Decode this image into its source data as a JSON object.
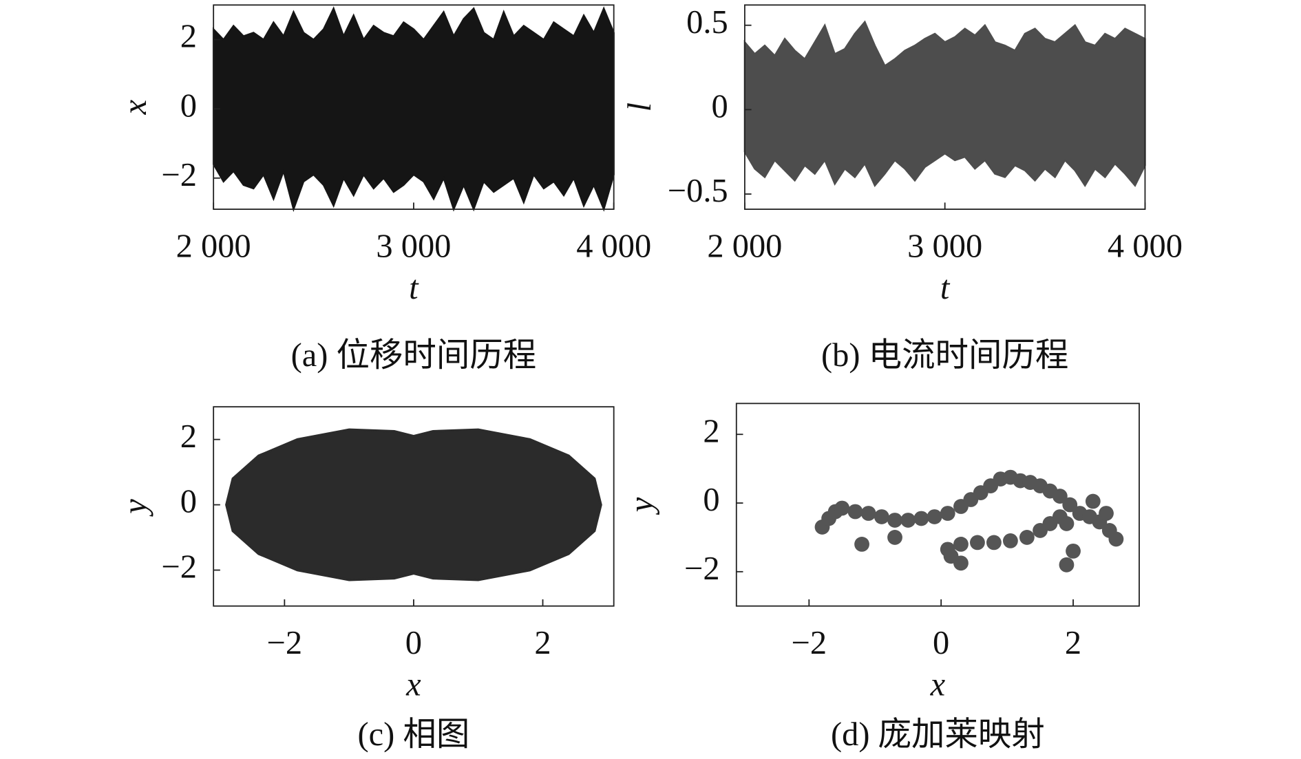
{
  "chart_data": [
    {
      "type": "area",
      "caption": "(a) 位移时间历程",
      "xlabel": "t",
      "ylabel": "x",
      "color": "#151515",
      "xlim": [
        2000,
        4000
      ],
      "ylim": [
        -2.9,
        3.0
      ],
      "xticks": [
        {
          "value": 2000,
          "label": "2 000"
        },
        {
          "value": 3000,
          "label": "3 000"
        },
        {
          "value": 4000,
          "label": "4 000"
        }
      ],
      "yticks": [
        {
          "value": -2,
          "label": "−2"
        },
        0,
        2
      ],
      "x": [
        2000,
        2050,
        2100,
        2150,
        2200,
        2250,
        2300,
        2350,
        2400,
        2450,
        2500,
        2550,
        2600,
        2650,
        2700,
        2750,
        2800,
        2850,
        2900,
        2950,
        3000,
        3050,
        3100,
        3150,
        3200,
        3250,
        3300,
        3350,
        3400,
        3450,
        3500,
        3550,
        3600,
        3650,
        3700,
        3750,
        3800,
        3850,
        3900,
        3950,
        4000
      ],
      "upper": [
        2.3,
        2.0,
        2.4,
        2.1,
        2.2,
        2.0,
        2.5,
        2.1,
        2.8,
        2.2,
        2.0,
        2.3,
        2.9,
        2.1,
        2.7,
        2.0,
        2.4,
        2.2,
        2.1,
        2.5,
        2.3,
        2.0,
        2.4,
        2.8,
        2.1,
        2.6,
        2.9,
        2.2,
        2.0,
        2.8,
        2.1,
        2.4,
        2.2,
        2.0,
        2.5,
        2.3,
        2.1,
        2.7,
        2.2,
        2.9,
        2.2
      ],
      "lower": [
        -1.6,
        -2.1,
        -1.8,
        -2.2,
        -2.3,
        -1.9,
        -2.6,
        -1.8,
        -2.9,
        -2.1,
        -1.9,
        -2.2,
        -2.8,
        -2.0,
        -2.5,
        -1.9,
        -2.3,
        -2.0,
        -2.4,
        -2.2,
        -1.9,
        -2.1,
        -2.6,
        -2.0,
        -2.9,
        -2.2,
        -2.9,
        -2.1,
        -2.4,
        -2.2,
        -2.0,
        -2.7,
        -1.9,
        -2.3,
        -2.1,
        -2.5,
        -2.0,
        -2.8,
        -2.2,
        -2.9,
        -1.9
      ]
    },
    {
      "type": "area",
      "caption": "(b) 电流时间历程",
      "xlabel": "t",
      "ylabel": "l",
      "color": "#4d4d4d",
      "xlim": [
        2000,
        4000
      ],
      "ylim": [
        -0.59,
        0.62
      ],
      "xticks": [
        {
          "value": 2000,
          "label": "2 000"
        },
        {
          "value": 3000,
          "label": "3 000"
        },
        {
          "value": 4000,
          "label": "4 000"
        }
      ],
      "yticks": [
        {
          "value": -0.5,
          "label": "−0.5"
        },
        0,
        0.5
      ],
      "x": [
        2000,
        2050,
        2100,
        2150,
        2200,
        2250,
        2300,
        2350,
        2400,
        2450,
        2500,
        2550,
        2600,
        2650,
        2700,
        2750,
        2800,
        2850,
        2900,
        2950,
        3000,
        3050,
        3100,
        3150,
        3200,
        3250,
        3300,
        3350,
        3400,
        3450,
        3500,
        3550,
        3600,
        3650,
        3700,
        3750,
        3800,
        3850,
        3900,
        3950,
        4000
      ],
      "upper": [
        0.4,
        0.33,
        0.38,
        0.32,
        0.42,
        0.35,
        0.3,
        0.4,
        0.5,
        0.33,
        0.36,
        0.45,
        0.52,
        0.38,
        0.26,
        0.3,
        0.35,
        0.38,
        0.42,
        0.45,
        0.4,
        0.43,
        0.48,
        0.44,
        0.5,
        0.4,
        0.38,
        0.35,
        0.45,
        0.48,
        0.42,
        0.4,
        0.45,
        0.5,
        0.4,
        0.38,
        0.45,
        0.42,
        0.48,
        0.45,
        0.42
      ],
      "lower": [
        -0.25,
        -0.35,
        -0.4,
        -0.3,
        -0.36,
        -0.42,
        -0.33,
        -0.38,
        -0.3,
        -0.44,
        -0.35,
        -0.4,
        -0.32,
        -0.45,
        -0.38,
        -0.3,
        -0.35,
        -0.42,
        -0.34,
        -0.3,
        -0.26,
        -0.3,
        -0.28,
        -0.35,
        -0.3,
        -0.38,
        -0.4,
        -0.33,
        -0.36,
        -0.42,
        -0.35,
        -0.4,
        -0.3,
        -0.36,
        -0.45,
        -0.35,
        -0.4,
        -0.32,
        -0.38,
        -0.45,
        -0.33
      ]
    },
    {
      "type": "line",
      "caption": "(c) 相图",
      "xlabel": "x",
      "ylabel": "y",
      "color": "#2b2b2b",
      "xlim": [
        -3.1,
        3.1
      ],
      "ylim": [
        -3.1,
        3.0
      ],
      "xticks": [
        {
          "value": -2,
          "label": "−2"
        },
        0,
        2
      ],
      "yticks": [
        {
          "value": -2,
          "label": "−2"
        },
        0,
        2
      ],
      "x": [
        -2.9,
        -2.8,
        -2.4,
        -1.8,
        -1.0,
        -0.3,
        0,
        0.3,
        1.0,
        1.8,
        2.4,
        2.8,
        2.9,
        2.8,
        2.4,
        1.8,
        1.0,
        0.3,
        0,
        -0.3,
        -1.0,
        -1.8,
        -2.4,
        -2.8,
        -2.9
      ],
      "y": [
        0,
        0.8,
        1.5,
        2.0,
        2.3,
        2.25,
        2.1,
        2.25,
        2.3,
        2.0,
        1.5,
        0.8,
        0,
        -0.8,
        -1.5,
        -2.0,
        -2.3,
        -2.25,
        -2.1,
        -2.25,
        -2.3,
        -2.0,
        -1.5,
        -0.8,
        0
      ]
    },
    {
      "type": "scatter",
      "caption": "(d) 庞加莱映射",
      "xlabel": "x",
      "ylabel": "y",
      "color": "#555555",
      "xlim": [
        -3.1,
        3.0
      ],
      "ylim": [
        -3.0,
        2.9
      ],
      "xticks": [
        {
          "value": -2,
          "label": "−2"
        },
        0,
        2
      ],
      "yticks": [
        {
          "value": -2,
          "label": "−2"
        },
        0,
        2
      ],
      "x": [
        -1.8,
        -1.7,
        -1.6,
        -1.5,
        -1.3,
        -1.1,
        -0.9,
        -0.7,
        -0.5,
        -0.3,
        -0.1,
        0.1,
        0.3,
        0.45,
        0.6,
        0.75,
        0.9,
        1.05,
        1.2,
        1.35,
        1.5,
        1.65,
        1.8,
        1.95,
        2.1,
        2.25,
        2.4,
        2.55,
        2.65,
        0.3,
        0.15,
        0.1,
        0.3,
        0.55,
        0.8,
        1.05,
        1.3,
        1.5,
        1.65,
        1.8,
        -1.2,
        -0.7,
        1.9,
        2.0,
        2.3,
        2.5,
        1.9
      ],
      "y": [
        -0.7,
        -0.45,
        -0.25,
        -0.15,
        -0.25,
        -0.3,
        -0.4,
        -0.5,
        -0.5,
        -0.45,
        -0.4,
        -0.3,
        -0.1,
        0.1,
        0.3,
        0.5,
        0.7,
        0.75,
        0.65,
        0.6,
        0.5,
        0.35,
        0.2,
        -0.05,
        -0.3,
        -0.4,
        -0.55,
        -0.8,
        -1.05,
        -1.75,
        -1.55,
        -1.35,
        -1.2,
        -1.15,
        -1.15,
        -1.1,
        -1.0,
        -0.8,
        -0.6,
        -0.4,
        -1.2,
        -1.0,
        -1.8,
        -1.4,
        0.05,
        -0.3,
        -0.6
      ]
    }
  ]
}
